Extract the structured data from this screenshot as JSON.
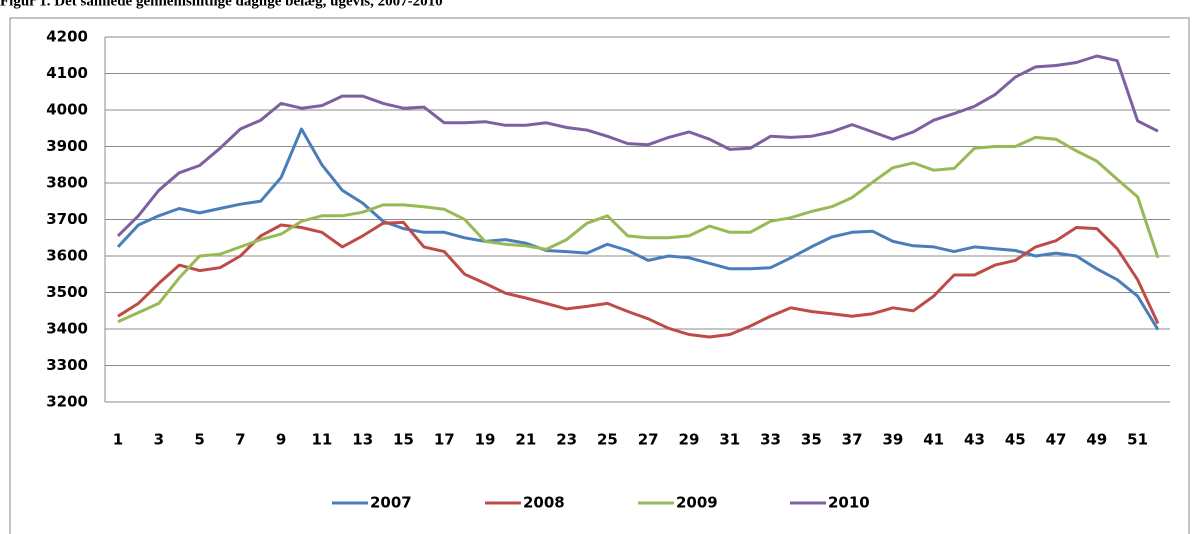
{
  "chart_data": {
    "type": "line",
    "title": "Figur 1. Det samlede gennemsnitlige daglige belæg, ugevis, 2007-2010",
    "categories": [
      1,
      null,
      3,
      null,
      5,
      null,
      7,
      null,
      9,
      null,
      11,
      null,
      13,
      null,
      15,
      null,
      17,
      null,
      19,
      null,
      21,
      null,
      23,
      null,
      25,
      null,
      27,
      null,
      29,
      null,
      31,
      null,
      33,
      null,
      35,
      null,
      37,
      null,
      39,
      null,
      41,
      null,
      43,
      null,
      45,
      null,
      47,
      null,
      49,
      null,
      51,
      null
    ],
    "ylim": [
      3200,
      4200
    ],
    "yticks": [
      3200,
      3300,
      3400,
      3500,
      3600,
      3700,
      3800,
      3900,
      4000,
      4100,
      4200
    ],
    "grid": true,
    "legend": "bottom",
    "series": [
      {
        "name": "2007",
        "color": "#4a7ebb",
        "values": [
          3625,
          3685,
          3710,
          3730,
          3718,
          3730,
          3742,
          3750,
          3815,
          3948,
          3850,
          3780,
          3745,
          3695,
          3675,
          3665,
          3665,
          3650,
          3640,
          3645,
          3635,
          3615,
          3612,
          3608,
          3632,
          3615,
          3588,
          3600,
          3595,
          3580,
          3565,
          3565,
          3568,
          3595,
          3625,
          3652,
          3665,
          3668,
          3640,
          3628,
          3625,
          3612,
          3625,
          3620,
          3615,
          3600,
          3608,
          3600,
          3565,
          3535,
          3490,
          3398
        ]
      },
      {
        "name": "2008",
        "color": "#be4b48",
        "values": [
          3435,
          3470,
          3525,
          3575,
          3560,
          3568,
          3600,
          3655,
          3685,
          3678,
          3665,
          3625,
          3655,
          3690,
          3692,
          3625,
          3612,
          3550,
          3525,
          3498,
          3485,
          3470,
          3455,
          3462,
          3470,
          3448,
          3428,
          3402,
          3385,
          3378,
          3385,
          3408,
          3435,
          3458,
          3448,
          3442,
          3435,
          3442,
          3458,
          3450,
          3490,
          3548,
          3548,
          3575,
          3588,
          3625,
          3642,
          3678,
          3675,
          3620,
          3535,
          3415
        ]
      },
      {
        "name": "2009",
        "color": "#98b954",
        "values": [
          3420,
          3445,
          3470,
          3540,
          3600,
          3605,
          3625,
          3645,
          3660,
          3695,
          3710,
          3710,
          3720,
          3740,
          3740,
          3735,
          3728,
          3700,
          3640,
          3632,
          3628,
          3618,
          3645,
          3690,
          3710,
          3655,
          3650,
          3650,
          3655,
          3682,
          3665,
          3665,
          3695,
          3705,
          3722,
          3735,
          3760,
          3802,
          3842,
          3855,
          3835,
          3840,
          3895,
          3900,
          3900,
          3925,
          3920,
          3888,
          3860,
          3810,
          3762,
          3595
        ]
      },
      {
        "name": "2010",
        "color": "#7d60a0",
        "values": [
          3655,
          3710,
          3780,
          3828,
          3848,
          3895,
          3948,
          3972,
          4018,
          4005,
          4012,
          4038,
          4038,
          4018,
          4005,
          4008,
          3965,
          3965,
          3968,
          3958,
          3958,
          3965,
          3952,
          3945,
          3928,
          3908,
          3905,
          3925,
          3940,
          3920,
          3892,
          3895,
          3928,
          3925,
          3928,
          3940,
          3960,
          3940,
          3920,
          3940,
          3972,
          3990,
          4010,
          4042,
          4090,
          4118,
          4122,
          4130,
          4148,
          4135,
          3970,
          3942
        ]
      }
    ]
  }
}
